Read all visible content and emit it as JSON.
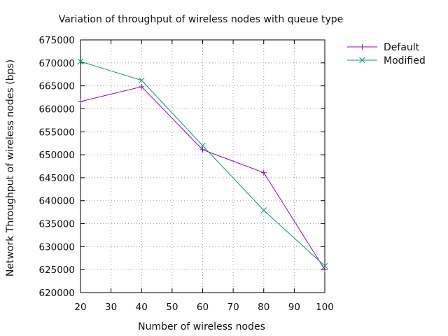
{
  "chart_data": {
    "type": "line",
    "title": "Variation of throughput of wireless nodes with queue type",
    "xlabel": "Number of wireless nodes",
    "ylabel": "Network Throughput of wireless nodes (bps)",
    "xlim": [
      20,
      100
    ],
    "ylim": [
      620000,
      675000
    ],
    "xticks": [
      20,
      30,
      40,
      50,
      60,
      70,
      80,
      90,
      100
    ],
    "yticks": [
      620000,
      625000,
      630000,
      635000,
      640000,
      645000,
      650000,
      655000,
      660000,
      665000,
      670000,
      675000
    ],
    "grid": true,
    "legend_position": "outside-top-right",
    "x": [
      20,
      40,
      60,
      80,
      100
    ],
    "series": [
      {
        "name": "Default",
        "values": [
          661600,
          664800,
          651100,
          646100,
          625000
        ],
        "color": "#9400d3",
        "marker": "plus"
      },
      {
        "name": "Modified",
        "values": [
          670300,
          666200,
          652000,
          637900,
          625800
        ],
        "color": "#009e73",
        "marker": "cross"
      }
    ]
  }
}
